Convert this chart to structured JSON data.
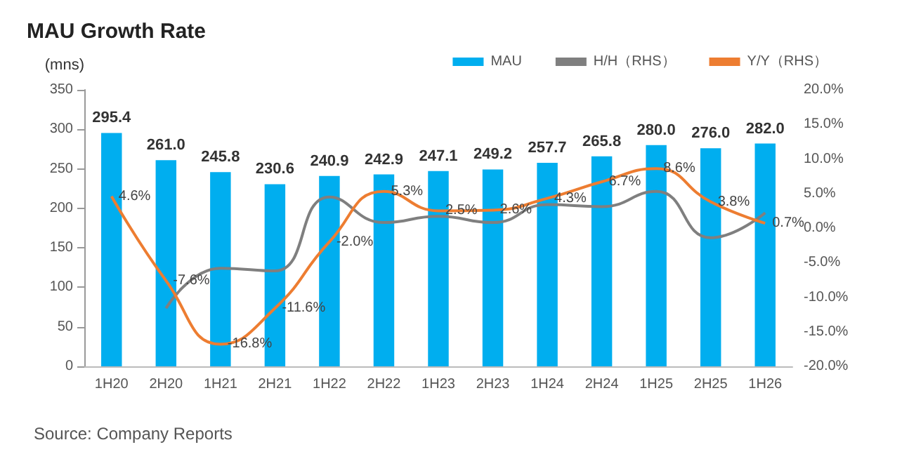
{
  "chart_data": {
    "type": "bar",
    "title": "MAU Growth Rate",
    "ylabel": "(mns)",
    "categories": [
      "1H20",
      "2H20",
      "1H21",
      "2H21",
      "1H22",
      "2H22",
      "1H23",
      "2H23",
      "1H24",
      "2H24",
      "1H25",
      "2H25",
      "1H26"
    ],
    "series": [
      {
        "name": "MAU",
        "color": "#00aeef",
        "values": [
          295.4,
          261.0,
          245.8,
          230.6,
          240.9,
          242.9,
          247.1,
          249.2,
          257.7,
          265.8,
          280.0,
          276.0,
          282.0
        ],
        "value_labels": [
          "295.4",
          "261.0",
          "245.8",
          "230.6",
          "240.9",
          "242.9",
          "247.1",
          "249.2",
          "257.7",
          "265.8",
          "280.0",
          "276.0",
          "282.0"
        ]
      },
      {
        "name": "H/H（RHS）",
        "type": "line",
        "axis": "y2",
        "color": "#7f7f7f",
        "values": [
          null,
          -11.6,
          -5.8,
          -6.2,
          4.5,
          0.8,
          1.7,
          0.8,
          3.4,
          3.1,
          5.3,
          -1.4,
          2.2
        ]
      },
      {
        "name": "Y/Y（RHS）",
        "type": "line",
        "axis": "y2",
        "color": "#ed7d31",
        "values": [
          4.6,
          -7.6,
          -16.8,
          -11.6,
          -2.0,
          5.3,
          2.5,
          2.6,
          4.3,
          6.7,
          8.6,
          3.8,
          0.7
        ],
        "value_labels": [
          "4.6%",
          "-7.6%",
          "-16.8%",
          "-11.6%",
          "-2.0%",
          "5.3%",
          "2.5%",
          "2.6%",
          "4.3%",
          "6.7%",
          "8.6%",
          "3.8%",
          "0.7%"
        ]
      }
    ],
    "ylim": [
      0,
      350
    ],
    "yticks": [
      0,
      50,
      100,
      150,
      200,
      250,
      300,
      350
    ],
    "y2lim": [
      -20,
      20
    ],
    "y2ticks": [
      {
        "value": -20,
        "label": "-20.0%"
      },
      {
        "value": -15,
        "label": "-15.0%"
      },
      {
        "value": -10,
        "label": "-10.0%"
      },
      {
        "value": -5,
        "label": "-5.0%"
      },
      {
        "value": 0,
        "label": "0.0%"
      },
      {
        "value": 5,
        "label": "5.0%"
      },
      {
        "value": 10,
        "label": "10.0%"
      },
      {
        "value": 15,
        "label": "15.0%"
      },
      {
        "value": 20,
        "label": "20.0%"
      }
    ],
    "marker": "none",
    "line_style": "solid",
    "grid": false,
    "legend": "top right",
    "annotations": [
      "Source: Company Reports"
    ]
  }
}
